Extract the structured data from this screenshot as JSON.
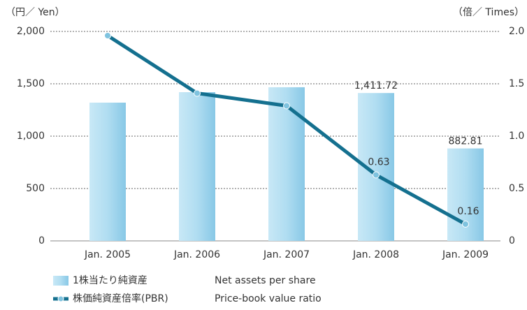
{
  "chart_data": {
    "type": "bar_line",
    "y_label": "（円／ Yen）",
    "y2_label": "（倍／ Times）",
    "categories": [
      "Jan. 2005",
      "Jan. 2006",
      "Jan. 2007",
      "Jan. 2008",
      "Jan. 2009"
    ],
    "series": [
      {
        "name": "1株当たり純資産",
        "name_en": "Net assets per share",
        "type": "bar",
        "color": "#9fd4ec",
        "values": [
          1320,
          1420,
          1467,
          1411.72,
          882.81
        ],
        "value_labels": [
          null,
          null,
          null,
          "1,411.72",
          "882.81"
        ]
      },
      {
        "name": "株価純資産倍率(PBR)",
        "name_en": "Price-book value ratio",
        "type": "line",
        "axis": "y2",
        "color": "#14708f",
        "values": [
          1.96,
          1.41,
          1.29,
          0.63,
          0.16
        ],
        "value_labels": [
          null,
          null,
          null,
          "0.63",
          "0.16"
        ]
      }
    ],
    "ylim": [
      0,
      2000
    ],
    "yticks": [
      0,
      500,
      {
        "value": 1000,
        "label": "1,000"
      },
      {
        "value": 1500,
        "label": "1,500"
      },
      {
        "value": 2000,
        "label": "2,000"
      }
    ],
    "y2lim": [
      0,
      2
    ],
    "y2ticks": [
      0,
      0.5,
      {
        "value": 1,
        "label": "1.0"
      },
      1.5,
      {
        "value": 2,
        "label": "2.0"
      }
    ],
    "grid": true
  }
}
